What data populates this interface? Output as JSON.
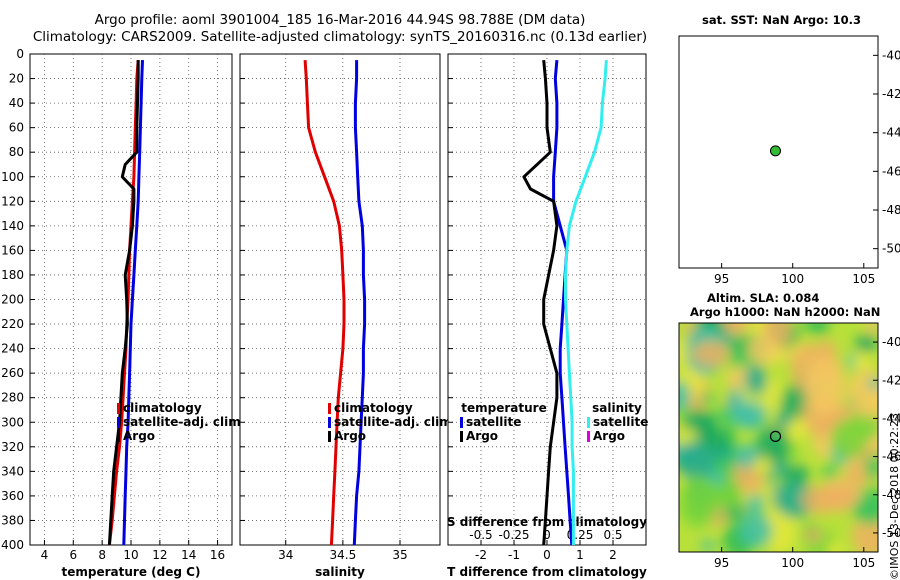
{
  "header": {
    "line1": "Argo profile: aoml 3901004_185 16-Mar-2016 44.94S 98.788E (DM data)",
    "line2": "Climatology: CARS2009. Satellite-adjusted climatology: synTS_20160316.nc (0.13d earlier)"
  },
  "sst_panel": {
    "title": "sat. SST: NaN Argo: 10.3"
  },
  "sla_panel": {
    "title_line1": "Altim. SLA: 0.084",
    "title_line2": "Argo h1000: NaN h2000: NaN"
  },
  "credit": "©IMOS 13-Dec-2018 00:22:23",
  "colors": {
    "climatology": "#e00000",
    "satellite": "#0000e0",
    "argo": "#000000",
    "sat_salinity": "#33eeee",
    "argo_salinity": "#dd00dd"
  },
  "chart_data": [
    {
      "type": "line",
      "name": "temperature",
      "xlabel": "temperature (deg C)",
      "ylabel": "",
      "xlim": [
        3,
        17
      ],
      "ylim": [
        400,
        0
      ],
      "xticks": [
        "4",
        "6",
        "8",
        "10",
        "12",
        "14",
        "16"
      ],
      "xtick_values": [
        4,
        6,
        8,
        10,
        12,
        14,
        16
      ],
      "yticks": [
        "0",
        "20",
        "40",
        "60",
        "80",
        "100",
        "120",
        "140",
        "160",
        "180",
        "200",
        "220",
        "240",
        "260",
        "280",
        "300",
        "320",
        "340",
        "360",
        "380",
        "400"
      ],
      "ytick_values": [
        0,
        20,
        40,
        60,
        80,
        100,
        120,
        140,
        160,
        180,
        200,
        220,
        240,
        260,
        280,
        300,
        320,
        340,
        360,
        380,
        400
      ],
      "grid": true,
      "legend": [
        "climatology",
        "satellite-adj. clim.",
        "Argo"
      ],
      "series": [
        {
          "name": "climatology",
          "x": [
            10.5,
            10.4,
            10.35,
            10.3,
            10.25,
            10.2,
            10.1,
            10.0,
            9.9,
            9.85,
            9.8,
            9.7,
            9.65,
            9.55,
            9.45,
            9.35,
            9.2,
            9.0,
            8.85,
            8.7,
            8.5
          ],
          "depth": [
            5,
            20,
            40,
            60,
            80,
            100,
            120,
            140,
            160,
            180,
            200,
            220,
            240,
            260,
            280,
            300,
            320,
            340,
            360,
            380,
            400
          ]
        },
        {
          "name": "satellite-adj. clim.",
          "x": [
            10.8,
            10.75,
            10.7,
            10.65,
            10.6,
            10.55,
            10.5,
            10.4,
            10.3,
            10.2,
            10.1,
            10.0,
            9.95,
            9.9,
            9.85,
            9.8,
            9.7,
            9.65,
            9.6,
            9.55,
            9.5
          ],
          "depth": [
            5,
            20,
            40,
            60,
            80,
            100,
            120,
            140,
            160,
            180,
            200,
            220,
            240,
            260,
            280,
            300,
            320,
            340,
            360,
            380,
            400
          ]
        },
        {
          "name": "Argo",
          "x": [
            10.5,
            10.5,
            10.45,
            10.4,
            10.4,
            9.6,
            9.4,
            10.2,
            10.2,
            10.1,
            9.9,
            9.6,
            9.7,
            9.75,
            9.6,
            9.4,
            9.3,
            9.2,
            9.0,
            8.8,
            8.7,
            8.6,
            8.5
          ],
          "depth": [
            5,
            20,
            40,
            60,
            80,
            90,
            100,
            110,
            120,
            140,
            160,
            180,
            200,
            220,
            240,
            260,
            280,
            300,
            320,
            340,
            360,
            380,
            400
          ]
        }
      ]
    },
    {
      "type": "line",
      "name": "salinity",
      "xlabel": "salinity",
      "ylabel": "",
      "xlim": [
        33.6,
        35.35
      ],
      "ylim": [
        400,
        0
      ],
      "xticks": [
        "34",
        "34.5",
        "35"
      ],
      "xtick_values": [
        34,
        34.5,
        35
      ],
      "grid": true,
      "legend": [
        "climatology",
        "satellite-adj. clim.",
        "Argo"
      ],
      "series": [
        {
          "name": "climatology",
          "x": [
            34.17,
            34.18,
            34.19,
            34.2,
            34.26,
            34.34,
            34.42,
            34.47,
            34.49,
            34.5,
            34.51,
            34.51,
            34.5,
            34.48,
            34.46,
            34.45,
            34.44,
            34.43,
            34.42,
            34.41,
            34.4
          ],
          "depth": [
            5,
            20,
            40,
            60,
            80,
            100,
            120,
            140,
            160,
            180,
            200,
            220,
            240,
            260,
            280,
            300,
            320,
            340,
            360,
            380,
            400
          ]
        },
        {
          "name": "satellite-adj. clim.",
          "x": [
            34.62,
            34.62,
            34.61,
            34.61,
            34.62,
            34.63,
            34.64,
            34.67,
            34.68,
            34.68,
            34.69,
            34.69,
            34.68,
            34.68,
            34.67,
            34.66,
            34.65,
            34.64,
            34.62,
            34.61,
            34.6
          ],
          "depth": [
            5,
            20,
            40,
            60,
            80,
            100,
            120,
            140,
            160,
            180,
            200,
            220,
            240,
            260,
            280,
            300,
            320,
            340,
            360,
            380,
            400
          ]
        }
      ]
    },
    {
      "type": "line",
      "name": "difference",
      "xlabel": "T difference from climatology",
      "xlabel_top": "S difference from climatology",
      "ylabel": "",
      "xlim": [
        -3,
        3
      ],
      "ylim": [
        400,
        0
      ],
      "xticks": [
        "-2",
        "-1",
        "0",
        "1",
        "2"
      ],
      "xtick_values": [
        -2,
        -1,
        0,
        1,
        2
      ],
      "s_xticks": [
        "-0.5",
        "-0.25",
        "0",
        "0.25",
        "0.5"
      ],
      "s_xtick_values": [
        -0.5,
        -0.25,
        0,
        0.25,
        0.5
      ],
      "s_xlim": [
        -0.75,
        0.75
      ],
      "grid": true,
      "legend_temperature": {
        "title": "temperature",
        "items": [
          "satellite",
          "Argo"
        ]
      },
      "legend_salinity": {
        "title": "salinity",
        "items": [
          "satellite",
          "Argo"
        ]
      },
      "series": [
        {
          "name": "T satellite",
          "scale": "T",
          "x": [
            0.3,
            0.25,
            0.3,
            0.3,
            0.25,
            0.2,
            0.2,
            0.4,
            0.6,
            0.55,
            0.5,
            0.45,
            0.4,
            0.4,
            0.45,
            0.5,
            0.55,
            0.6,
            0.65,
            0.7,
            0.75
          ],
          "depth": [
            5,
            20,
            40,
            60,
            80,
            100,
            120,
            140,
            160,
            180,
            200,
            220,
            240,
            260,
            280,
            300,
            320,
            340,
            360,
            380,
            400
          ]
        },
        {
          "name": "T Argo",
          "scale": "T",
          "x": [
            -0.1,
            -0.05,
            0.0,
            0.0,
            0.1,
            -0.7,
            -0.5,
            0.2,
            0.3,
            0.2,
            -0.1,
            -0.1,
            0.1,
            0.3,
            0.3,
            0.2,
            0.1,
            0.05,
            0.0,
            -0.05,
            -0.1
          ],
          "depth": [
            5,
            20,
            40,
            60,
            80,
            100,
            110,
            120,
            140,
            160,
            200,
            220,
            240,
            260,
            280,
            300,
            320,
            340,
            360,
            380,
            400
          ]
        },
        {
          "name": "S satellite",
          "scale": "S",
          "x": [
            0.45,
            0.44,
            0.42,
            0.41,
            0.36,
            0.29,
            0.22,
            0.17,
            0.15,
            0.14,
            0.14,
            0.15,
            0.16,
            0.17,
            0.18,
            0.19,
            0.19,
            0.2,
            0.2,
            0.2,
            0.2
          ],
          "depth": [
            5,
            20,
            40,
            60,
            80,
            100,
            120,
            140,
            160,
            180,
            200,
            220,
            240,
            260,
            280,
            300,
            320,
            340,
            360,
            380,
            400
          ]
        }
      ]
    },
    {
      "type": "scatter",
      "name": "sst_map",
      "xlim": [
        92,
        106
      ],
      "ylim": [
        -51,
        -39
      ],
      "xticks": [
        "95",
        "100",
        "105"
      ],
      "xtick_values": [
        95,
        100,
        105
      ],
      "yticks": [
        "-40",
        "-42",
        "-44",
        "-46",
        "-48",
        "-50"
      ],
      "ytick_values": [
        -40,
        -42,
        -44,
        -46,
        -48,
        -50
      ],
      "points": [
        {
          "name": "Argo",
          "x": 98.788,
          "y": -44.94
        }
      ]
    },
    {
      "type": "heatmap",
      "name": "sla_map",
      "xlim": [
        92,
        106
      ],
      "ylim": [
        -51,
        -39
      ],
      "xticks": [
        "95",
        "100",
        "105"
      ],
      "xtick_values": [
        95,
        100,
        105
      ],
      "yticks": [
        "-40",
        "-42",
        "-44",
        "-46",
        "-48",
        "-50"
      ],
      "ytick_values": [
        -40,
        -42,
        -44,
        -46,
        -48,
        -50
      ],
      "points": [
        {
          "name": "Argo",
          "x": 98.788,
          "y": -44.94
        }
      ]
    }
  ]
}
